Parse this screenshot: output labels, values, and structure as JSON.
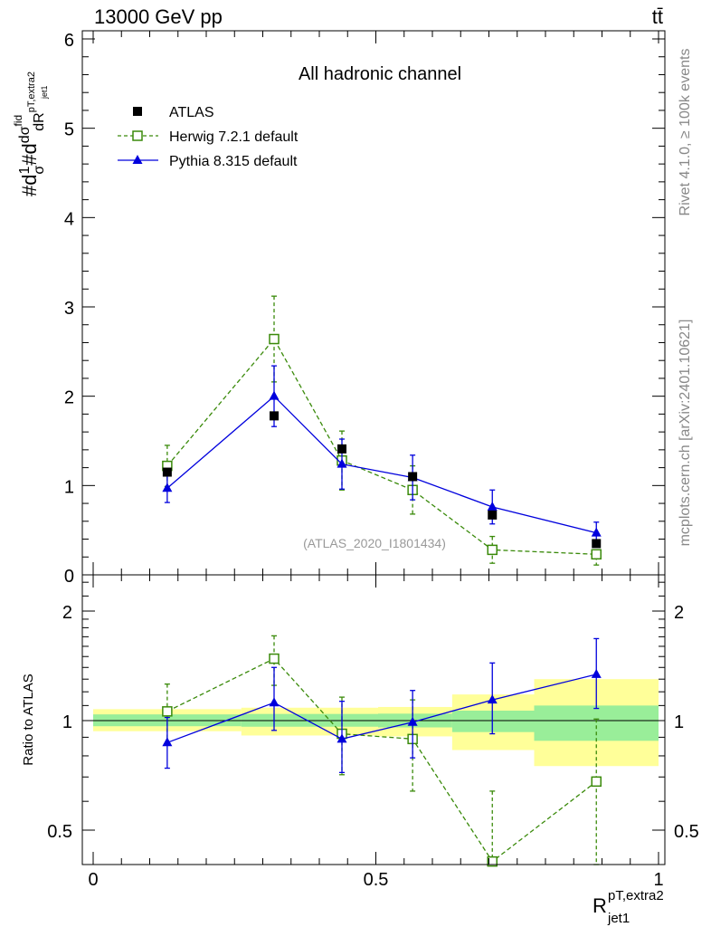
{
  "header": {
    "energy_label": "13000 GeV pp",
    "process_label": "tt̄"
  },
  "side_labels": {
    "rivet": "Rivet 4.1.0, ≥ 100k events",
    "mcplots": "mcplots.cern.ch [arXiv:2401.10621]"
  },
  "main_panel": {
    "title": "All hadronic channel",
    "ylabel": "#d1/σ#ddσ^fid/dR^pT,extra2_jet1",
    "watermark": "(ATLAS_2020_I1801434)",
    "yticks": [
      "0",
      "1",
      "2",
      "3",
      "4",
      "5",
      "6"
    ]
  },
  "ratio_panel": {
    "ylabel": "Ratio to ATLAS",
    "yticks": [
      "0.5",
      "1",
      "2"
    ]
  },
  "xaxis": {
    "ticks": [
      "0",
      "0.5",
      "1"
    ],
    "label_main": "R",
    "label_sup": "pT,extra2",
    "label_sub": "jet1"
  },
  "legend": [
    {
      "name": "ATLAS"
    },
    {
      "name": "Herwig 7.2.1 default"
    },
    {
      "name": "Pythia 8.315 default"
    }
  ],
  "colors": {
    "data": "#000000",
    "herwig": "#3a8a0a",
    "pythia": "#0000dd",
    "band_inner": "#99ee99",
    "band_outer": "#ffff99",
    "watermark": "#999999"
  },
  "chart_data": [
    {
      "type": "scatter",
      "title": "All hadronic channel",
      "xlabel": "R^{pT,extra2}_{jet1}",
      "ylabel": "1/σ dσ^fid / dR^{pT,extra2}_{jet1}",
      "xlim": [
        0,
        1
      ],
      "ylim": [
        0,
        6
      ],
      "bin_edges": [
        0.0,
        0.262,
        0.42,
        0.504,
        0.635,
        0.78,
        1.0
      ],
      "x": [
        0.131,
        0.32,
        0.44,
        0.565,
        0.706,
        0.89
      ],
      "series": [
        {
          "name": "ATLAS",
          "values": [
            1.15,
            1.78,
            1.41,
            1.1,
            0.67,
            0.35
          ]
        },
        {
          "name": "Herwig 7.2.1 default",
          "values": [
            1.22,
            2.64,
            1.28,
            0.95,
            0.28,
            0.23
          ],
          "err_up": [
            0.23,
            0.48,
            0.33,
            0.27,
            0.15,
            0.12
          ],
          "err_dn": [
            0.23,
            0.48,
            0.33,
            0.27,
            0.15,
            0.12
          ]
        },
        {
          "name": "Pythia 8.315 default",
          "values": [
            0.97,
            2.0,
            1.24,
            1.09,
            0.76,
            0.47
          ],
          "err_up": [
            0.16,
            0.34,
            0.28,
            0.25,
            0.19,
            0.12
          ],
          "err_dn": [
            0.16,
            0.34,
            0.28,
            0.25,
            0.19,
            0.12
          ]
        }
      ]
    },
    {
      "type": "scatter",
      "ylabel": "Ratio to ATLAS",
      "yscale": "log",
      "xlim": [
        0,
        1
      ],
      "ylim": [
        0.4,
        2.6
      ],
      "bin_edges": [
        0.0,
        0.262,
        0.42,
        0.504,
        0.635,
        0.78,
        1.0
      ],
      "x": [
        0.131,
        0.32,
        0.44,
        0.565,
        0.706,
        0.89
      ],
      "bands": {
        "inner": [
          [
            0.965,
            1.04
          ],
          [
            0.962,
            1.043
          ],
          [
            0.962,
            1.043
          ],
          [
            0.958,
            1.045
          ],
          [
            0.93,
            1.065
          ],
          [
            0.88,
            1.1
          ]
        ],
        "outer": [
          [
            0.935,
            1.075
          ],
          [
            0.91,
            1.085
          ],
          [
            0.91,
            1.085
          ],
          [
            0.905,
            1.09
          ],
          [
            0.83,
            1.18
          ],
          [
            0.75,
            1.3
          ]
        ]
      },
      "series": [
        {
          "name": "Herwig 7.2.1 default",
          "values": [
            1.06,
            1.48,
            0.92,
            0.89,
            0.41,
            0.68
          ],
          "err_up": [
            0.2,
            0.23,
            0.24,
            0.25,
            0.23,
            0.33
          ],
          "err_dn": [
            0.2,
            0.23,
            0.21,
            0.25,
            0.23,
            0.33
          ]
        },
        {
          "name": "Pythia 8.315 default",
          "values": [
            0.87,
            1.12,
            0.89,
            0.99,
            1.14,
            1.34
          ],
          "err_up": [
            0.15,
            0.28,
            0.24,
            0.22,
            0.3,
            0.34
          ],
          "err_dn": [
            0.13,
            0.18,
            0.17,
            0.2,
            0.22,
            0.26
          ]
        }
      ]
    }
  ]
}
